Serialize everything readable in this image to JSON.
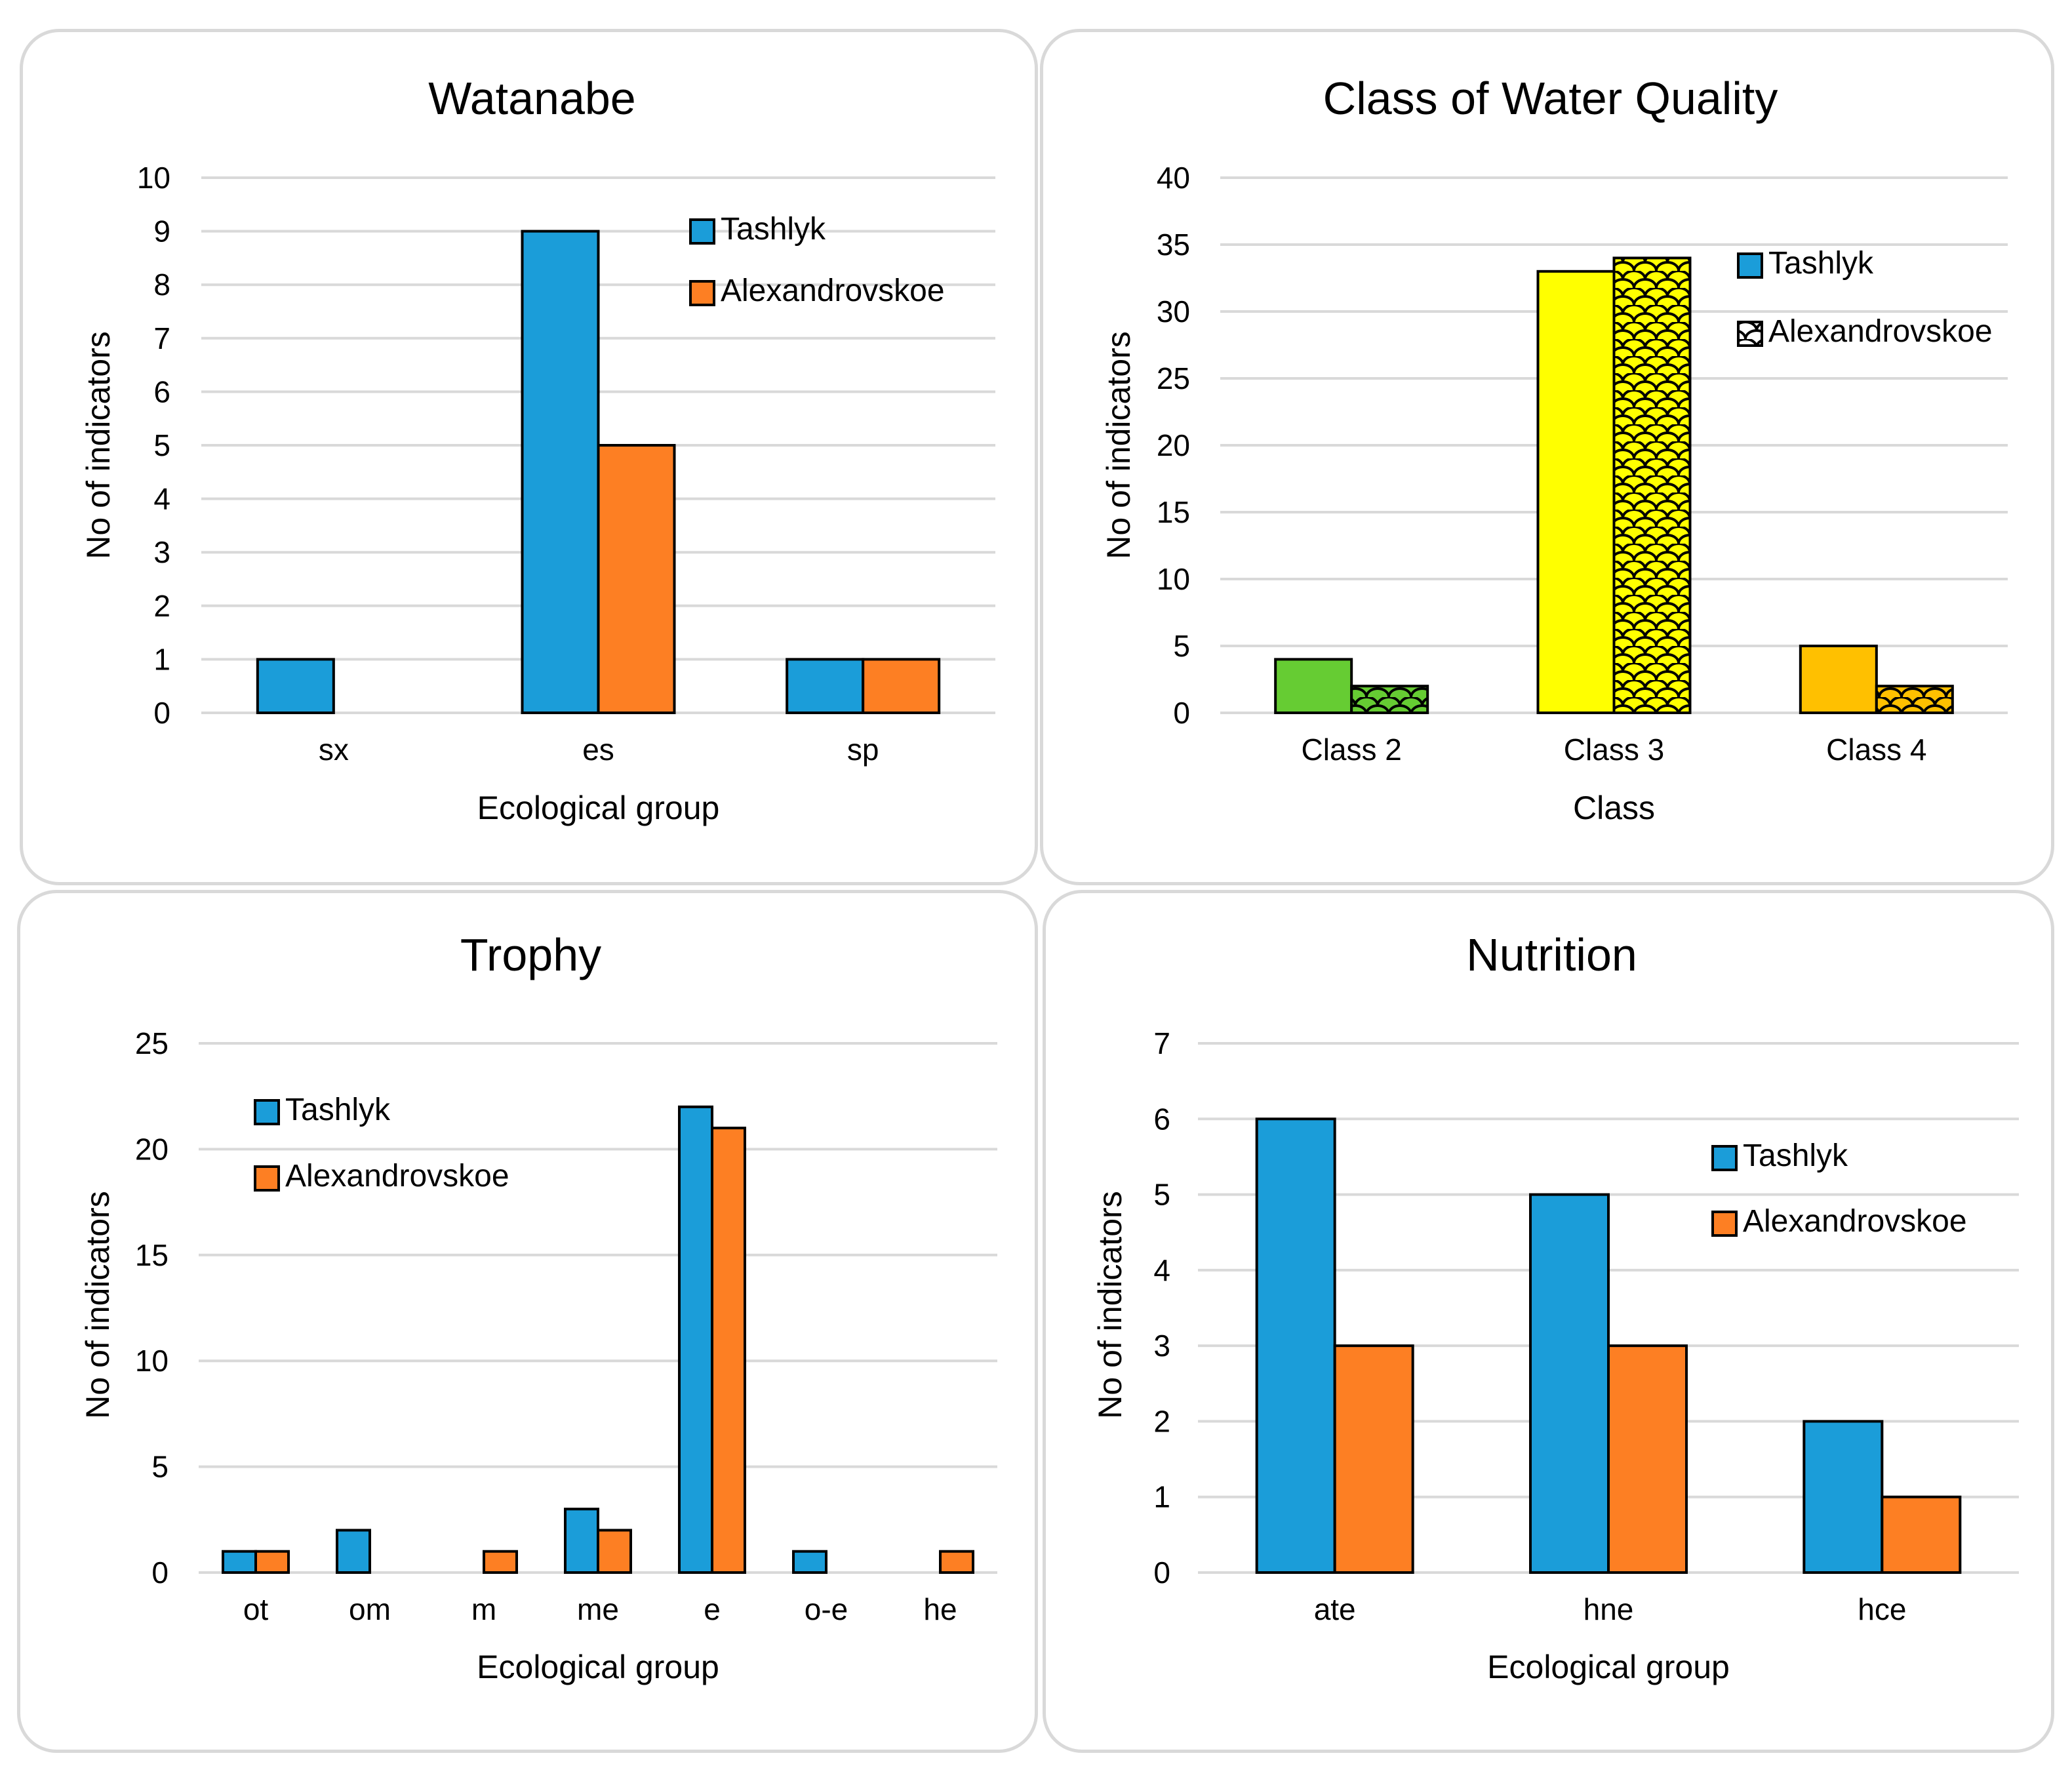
{
  "charts": [
    {
      "chart_data": {
        "type": "bar",
        "title": "Watanabe",
        "xlabel": "Ecological group",
        "ylabel": "No of indicators",
        "categories": [
          "sx",
          "es",
          "sp"
        ],
        "ylim": [
          0,
          10
        ],
        "yticks": [
          0,
          1,
          2,
          3,
          4,
          5,
          6,
          7,
          8,
          9,
          10
        ],
        "series": [
          {
            "name": "Tashlyk",
            "values": [
              1,
              9,
              1
            ]
          },
          {
            "name": "Alexandrovskoe",
            "values": [
              0,
              5,
              1
            ]
          }
        ],
        "legend_position": "top-right",
        "grid": true
      }
    },
    {
      "chart_data": {
        "type": "bar",
        "title": "Class of Water Quality",
        "xlabel": "Class",
        "ylabel": "No of indicators",
        "categories": [
          "Class 2",
          "Class 3",
          "Class 4"
        ],
        "ylim": [
          0,
          40
        ],
        "yticks": [
          0,
          5,
          10,
          15,
          20,
          25,
          30,
          35,
          40
        ],
        "series": [
          {
            "name": "Tashlyk",
            "values": [
              4,
              33,
              5
            ]
          },
          {
            "name": "Alexandrovskoe",
            "values": [
              2,
              34,
              2
            ]
          }
        ],
        "category_colors": [
          "#66cc33",
          "#ffff00",
          "#ffc000"
        ],
        "second_series_pattern": "scales",
        "legend_position": "top-right",
        "grid": true
      }
    },
    {
      "chart_data": {
        "type": "bar",
        "title": "Trophy",
        "xlabel": "Ecological group",
        "ylabel": "No of indicators",
        "categories": [
          "ot",
          "om",
          "m",
          "me",
          "e",
          "o-e",
          "he"
        ],
        "ylim": [
          0,
          25
        ],
        "yticks": [
          0,
          5,
          10,
          15,
          20,
          25
        ],
        "series": [
          {
            "name": "Tashlyk",
            "values": [
              1,
              2,
              0,
              3,
              22,
              1,
              0
            ]
          },
          {
            "name": "Alexandrovskoe",
            "values": [
              1,
              0,
              1,
              2,
              21,
              0,
              1
            ]
          }
        ],
        "legend_position": "top-left",
        "grid": true
      }
    },
    {
      "chart_data": {
        "type": "bar",
        "title": "Nutrition",
        "xlabel": "Ecological group",
        "ylabel": "No of indicators",
        "categories": [
          "ate",
          "hne",
          "hce"
        ],
        "ylim": [
          0,
          7
        ],
        "yticks": [
          0,
          1,
          2,
          3,
          4,
          5,
          6,
          7
        ],
        "series": [
          {
            "name": "Tashlyk",
            "values": [
              6,
              5,
              2
            ]
          },
          {
            "name": "Alexandrovskoe",
            "values": [
              3,
              3,
              1
            ]
          }
        ],
        "legend_position": "top-right",
        "grid": true
      }
    }
  ],
  "colors": {
    "tashlyk": "#1b9dd9",
    "alexandrovskoe": "#fd7f23",
    "grid": "#d9d9d9",
    "bar_stroke": "#000000"
  }
}
